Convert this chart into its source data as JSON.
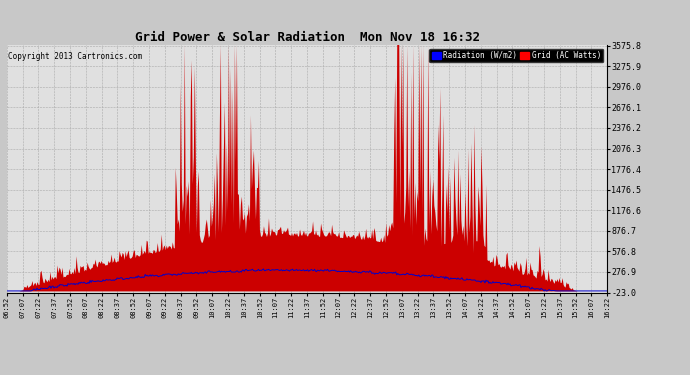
{
  "title": "Grid Power & Solar Radiation  Mon Nov 18 16:32",
  "copyright": "Copyright 2013 Cartronics.com",
  "legend_labels": [
    "Radiation (W/m2)",
    "Grid (AC Watts)"
  ],
  "legend_colors": [
    "blue",
    "red"
  ],
  "y_ticks": [
    3575.8,
    3275.9,
    2976.0,
    2676.1,
    2376.2,
    2076.3,
    1776.4,
    1476.5,
    1176.6,
    876.7,
    576.8,
    276.9,
    -23.0
  ],
  "y_min": -23.0,
  "y_max": 3575.8,
  "bg_color": "#c8c8c8",
  "plot_bg_color": "#e0e0e0",
  "grid_color": "#aaaaaa",
  "red_fill_color": "#cc0000",
  "blue_line_color": "#0000cc",
  "x_tick_labels": [
    "06:52",
    "07:07",
    "07:22",
    "07:37",
    "07:52",
    "08:07",
    "08:22",
    "08:37",
    "08:52",
    "09:07",
    "09:22",
    "09:37",
    "09:52",
    "10:07",
    "10:22",
    "10:37",
    "10:52",
    "11:07",
    "11:22",
    "11:37",
    "11:52",
    "12:07",
    "12:22",
    "12:37",
    "12:52",
    "13:07",
    "13:22",
    "13:37",
    "13:52",
    "14:07",
    "14:22",
    "14:37",
    "14:52",
    "15:07",
    "15:22",
    "15:37",
    "15:52",
    "16:07",
    "16:22"
  ]
}
